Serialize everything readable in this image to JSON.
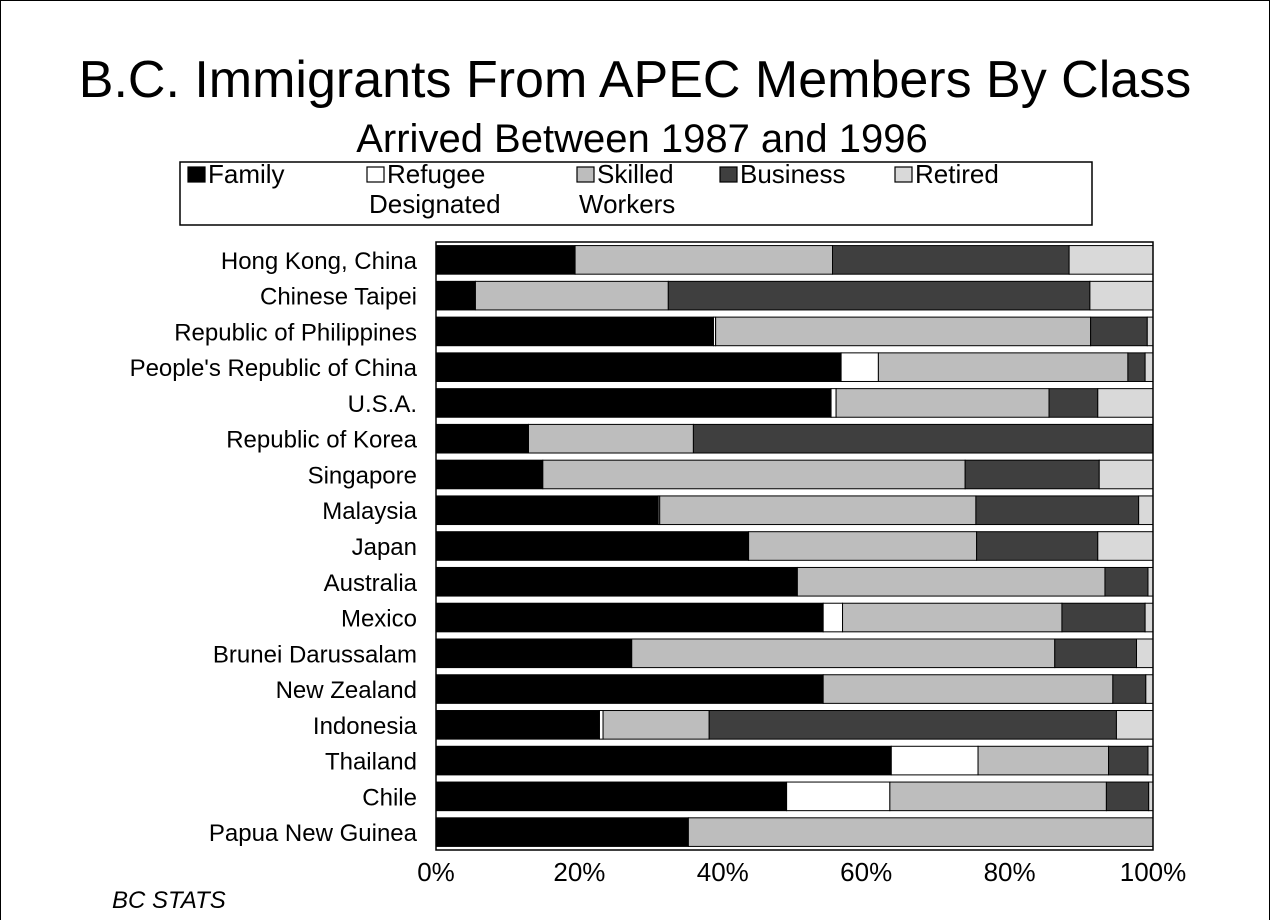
{
  "chart_data": {
    "type": "bar",
    "orientation": "horizontal",
    "stacked": true,
    "percent_stacked": true,
    "title": "B.C. Immigrants From APEC Members By Class",
    "subtitle": "Arrived Between 1987 and 1996",
    "source": "BC STATS",
    "legend_placement": "top",
    "grid": false,
    "xlim": [
      0,
      100
    ],
    "x_ticks": [
      "0%",
      "20%",
      "40%",
      "60%",
      "80%",
      "100%"
    ],
    "categories": [
      "Hong Kong, China",
      "Chinese Taipei",
      "Republic of Philippines",
      "People's Republic of China",
      "U.S.A.",
      "Republic of Korea",
      "Singapore",
      "Malaysia",
      "Japan",
      "Australia",
      "Mexico",
      "Brunei Darussalam",
      "New Zealand",
      "Indonesia",
      "Thailand",
      "Chile",
      "Papua New Guinea"
    ],
    "series": [
      {
        "name": "Family",
        "legend_lines": [
          "Family"
        ],
        "color": "#000000",
        "values": [
          19.4,
          5.5,
          38.7,
          56.5,
          55.1,
          12.9,
          14.9,
          31.0,
          43.6,
          50.4,
          54.0,
          27.3,
          54.0,
          22.8,
          63.5,
          48.9,
          35.2
        ]
      },
      {
        "name": "Refugee Designated",
        "legend_lines": [
          "Refugee",
          "Designated"
        ],
        "color": "#ffffff",
        "values": [
          0.0,
          0.0,
          0.3,
          5.2,
          0.7,
          0.0,
          0.0,
          0.2,
          0.0,
          0.0,
          2.7,
          0.0,
          0.0,
          0.5,
          12.1,
          14.4,
          0.0
        ]
      },
      {
        "name": "Skilled Workers",
        "legend_lines": [
          "Skilled",
          "Workers"
        ],
        "color": "#bdbdbd",
        "values": [
          35.9,
          26.9,
          52.3,
          34.8,
          29.7,
          23.0,
          58.9,
          44.1,
          31.8,
          42.9,
          30.6,
          59.0,
          40.4,
          14.8,
          18.2,
          30.2,
          64.8
        ]
      },
      {
        "name": "Business",
        "legend_lines": [
          "Business"
        ],
        "color": "#3f3f3f",
        "values": [
          33.0,
          58.8,
          7.9,
          2.4,
          6.8,
          64.1,
          18.7,
          22.7,
          16.9,
          6.0,
          11.6,
          11.4,
          4.6,
          56.8,
          5.5,
          5.9,
          0.0
        ]
      },
      {
        "name": "Retired",
        "legend_lines": [
          "Retired"
        ],
        "color": "#d9d9d9",
        "values": [
          11.7,
          8.8,
          0.8,
          1.1,
          7.7,
          0.0,
          7.5,
          2.0,
          7.7,
          0.7,
          1.1,
          2.3,
          1.0,
          5.1,
          0.7,
          0.6,
          0.0
        ]
      }
    ]
  }
}
